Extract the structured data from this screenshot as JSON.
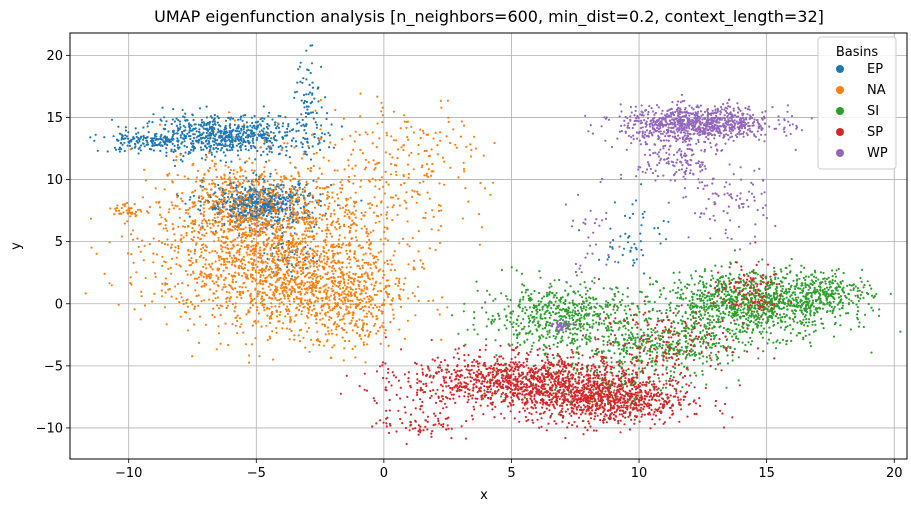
{
  "chart_data": {
    "type": "scatter",
    "title": "UMAP eigenfunction analysis [n_neighbors=600, min_dist=0.2, context_length=32]",
    "xlabel": "x",
    "ylabel": "y",
    "xlim": [
      -12.3,
      20.5
    ],
    "ylim": [
      -12.5,
      21.8
    ],
    "xticks": [
      -10,
      -5,
      0,
      5,
      10,
      15,
      20
    ],
    "xtick_labels": [
      "−10",
      "−5",
      "0",
      "5",
      "10",
      "15",
      "20"
    ],
    "yticks": [
      -10,
      -5,
      0,
      5,
      10,
      15,
      20
    ],
    "ytick_labels": [
      "−10",
      "−5",
      "0",
      "5",
      "10",
      "15",
      "20"
    ],
    "grid": true,
    "legend": {
      "title": "Basins",
      "placement": "top-right"
    },
    "series": [
      {
        "name": "EP",
        "color": "#1f77b4",
        "clusters": [
          {
            "cx": -6.3,
            "cy": 13.5,
            "sx": 1.6,
            "sy": 0.8,
            "n": 700
          },
          {
            "cx": -4.8,
            "cy": 8.0,
            "sx": 1.1,
            "sy": 0.9,
            "n": 650
          },
          {
            "cx": -9.5,
            "cy": 13.0,
            "sx": 0.8,
            "sy": 0.4,
            "n": 120
          },
          {
            "cx": -2.9,
            "cy": 16.0,
            "sx": 0.3,
            "sy": 2.0,
            "n": 80
          },
          {
            "cx": 9.8,
            "cy": 5.5,
            "sx": 0.7,
            "sy": 1.6,
            "n": 50
          },
          {
            "cx": -3.7,
            "cy": 4.0,
            "sx": 0.5,
            "sy": 1.0,
            "n": 60
          }
        ]
      },
      {
        "name": "NA",
        "color": "#ff7f0e",
        "clusters": [
          {
            "cx": -4.5,
            "cy": 3.5,
            "sx": 2.3,
            "sy": 2.8,
            "n": 1500
          },
          {
            "cx": -2.0,
            "cy": 1.0,
            "sx": 1.5,
            "sy": 1.8,
            "n": 500
          },
          {
            "cx": -6.0,
            "cy": 8.0,
            "sx": 1.4,
            "sy": 1.8,
            "n": 400
          },
          {
            "cx": -1.5,
            "cy": 9.5,
            "sx": 2.2,
            "sy": 2.8,
            "n": 300
          },
          {
            "cx": -10.0,
            "cy": 7.5,
            "sx": 0.3,
            "sy": 0.3,
            "n": 40
          },
          {
            "cx": 1.5,
            "cy": 12.5,
            "sx": 1.2,
            "sy": 2.0,
            "n": 90
          },
          {
            "cx": -1.0,
            "cy": -2.0,
            "sx": 0.8,
            "sy": 1.0,
            "n": 80
          }
        ]
      },
      {
        "name": "SI",
        "color": "#2ca02c",
        "clusters": [
          {
            "cx": 14.5,
            "cy": 0.0,
            "sx": 1.8,
            "sy": 1.3,
            "n": 1100
          },
          {
            "cx": 7.0,
            "cy": -1.0,
            "sx": 1.6,
            "sy": 1.3,
            "n": 600
          },
          {
            "cx": 11.0,
            "cy": -3.5,
            "sx": 1.6,
            "sy": 1.1,
            "n": 400
          },
          {
            "cx": 17.5,
            "cy": 1.0,
            "sx": 0.8,
            "sy": 0.7,
            "n": 200
          },
          {
            "cx": 8.5,
            "cy": -6.5,
            "sx": 2.0,
            "sy": 1.0,
            "n": 150
          }
        ]
      },
      {
        "name": "SP",
        "color": "#d62728",
        "clusters": [
          {
            "cx": 5.5,
            "cy": -6.2,
            "sx": 2.3,
            "sy": 1.1,
            "n": 1200
          },
          {
            "cx": 8.8,
            "cy": -7.8,
            "sx": 1.6,
            "sy": 1.0,
            "n": 800
          },
          {
            "cx": 11.0,
            "cy": -3.0,
            "sx": 1.3,
            "sy": 1.4,
            "n": 160
          },
          {
            "cx": 14.3,
            "cy": 1.0,
            "sx": 0.7,
            "sy": 1.1,
            "n": 120
          },
          {
            "cx": 1.3,
            "cy": -9.5,
            "sx": 0.8,
            "sy": 0.8,
            "n": 80
          }
        ]
      },
      {
        "name": "WP",
        "color": "#9467bd",
        "clusters": [
          {
            "cx": 12.3,
            "cy": 14.5,
            "sx": 1.5,
            "sy": 0.7,
            "n": 900
          },
          {
            "cx": 11.5,
            "cy": 11.5,
            "sx": 0.8,
            "sy": 1.2,
            "n": 150
          },
          {
            "cx": 13.5,
            "cy": 8.0,
            "sx": 0.8,
            "sy": 1.5,
            "n": 80
          },
          {
            "cx": 7.0,
            "cy": -1.8,
            "sx": 0.2,
            "sy": 0.2,
            "n": 40
          },
          {
            "cx": 8.2,
            "cy": 4.5,
            "sx": 0.5,
            "sy": 2.5,
            "n": 40
          }
        ]
      }
    ]
  }
}
